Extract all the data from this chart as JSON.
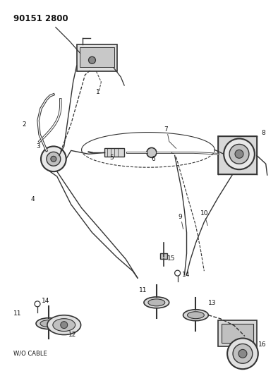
{
  "title": "90151 2800",
  "background_color": "#ffffff",
  "line_color": "#333333",
  "text_color": "#111111",
  "fig_width": 3.94,
  "fig_height": 5.33,
  "dpi": 100,
  "label_fontsize": 6.5,
  "title_fontsize": 8.5
}
